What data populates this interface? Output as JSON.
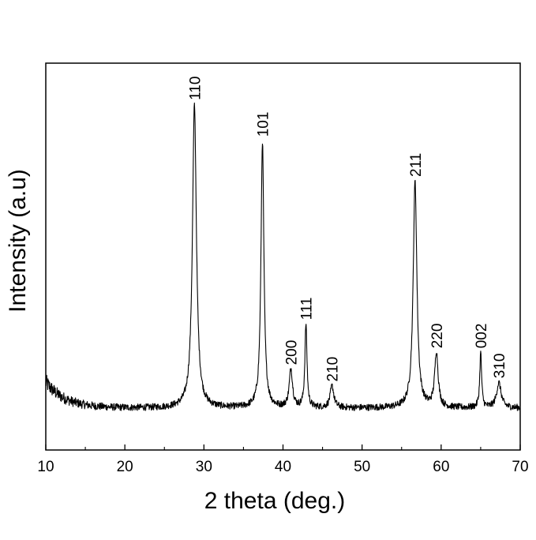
{
  "chart_data": {
    "type": "line",
    "title": "",
    "xlabel": "2 theta (deg.)",
    "ylabel": "Intensity (a.u)",
    "xlim": [
      10,
      70
    ],
    "ylim": [
      0,
      100
    ],
    "x_ticks": [
      10,
      20,
      30,
      40,
      50,
      60,
      70
    ],
    "grid": false,
    "legend": "none",
    "line_color": "#000000",
    "peaks": [
      {
        "label": "110",
        "x": 28.8,
        "y": 91,
        "width": 0.3
      },
      {
        "label": "101",
        "x": 37.4,
        "y": 80,
        "width": 0.22
      },
      {
        "label": "200",
        "x": 41.0,
        "y": 11.5,
        "width": 0.25
      },
      {
        "label": "111",
        "x": 42.9,
        "y": 25,
        "width": 0.16
      },
      {
        "label": "210",
        "x": 46.2,
        "y": 6.5,
        "width": 0.28
      },
      {
        "label": "211",
        "x": 56.7,
        "y": 68,
        "width": 0.28
      },
      {
        "label": "220",
        "x": 59.4,
        "y": 16.5,
        "width": 0.26
      },
      {
        "label": "002",
        "x": 65.0,
        "y": 16.5,
        "width": 0.14
      },
      {
        "label": "310",
        "x": 67.3,
        "y": 7.5,
        "width": 0.35
      }
    ],
    "background": {
      "start": 9,
      "end": 1.2,
      "decay": 2.4,
      "noise": 1.0
    }
  }
}
